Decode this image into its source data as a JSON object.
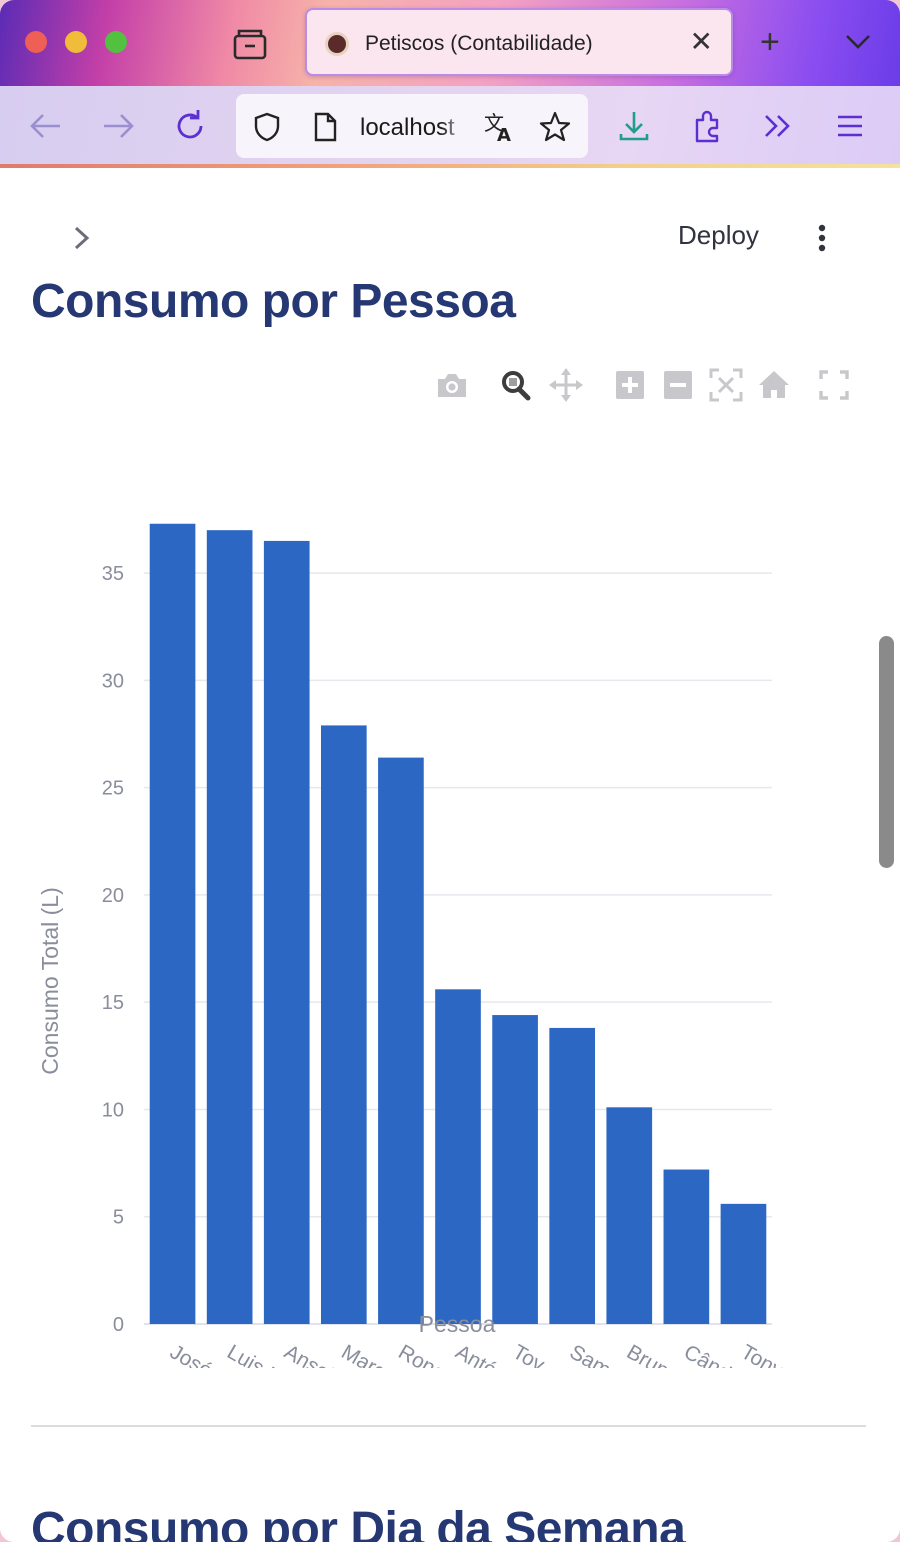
{
  "browser": {
    "tab": {
      "title": "Petiscos (Contabilidade)"
    },
    "address": {
      "url": "localhost"
    }
  },
  "app": {
    "header": {
      "deploy_label": "Deploy"
    },
    "sections": [
      {
        "title": "Consumo por Pessoa"
      },
      {
        "title": "Consumo por Dia da Semana"
      }
    ]
  },
  "colors": {
    "bar": "#2d67c4",
    "title": "#253873",
    "axis_text": "#8a8d9c"
  },
  "icons": [
    "tabs-icon",
    "back-arrow-icon",
    "forward-arrow-icon",
    "reload-icon",
    "shield-icon",
    "page-icon",
    "translate-icon",
    "star-icon",
    "download-icon",
    "extensions-icon",
    "overflow-icon",
    "menu-icon",
    "chevron-right-icon",
    "kebab-menu-icon",
    "camera-icon",
    "zoom-icon",
    "pan-icon",
    "zoom-in-icon",
    "zoom-out-icon",
    "autoscale-icon",
    "home-icon",
    "fullscreen-icon"
  ],
  "chart_data": {
    "type": "bar",
    "title": "",
    "xlabel": "Pessoa",
    "ylabel": "Consumo Total (L)",
    "categories": [
      "José Mourinho",
      "Luis Montenegro",
      "Anselmo Ralph",
      "Marcelo",
      "Ronaldo",
      "António Costa",
      "Toy",
      "Samuel Mira",
      "Bruno Nogueira",
      "Cândido Costa",
      "Tony Carreira"
    ],
    "values": [
      37.3,
      37.0,
      36.5,
      27.9,
      26.4,
      15.6,
      14.4,
      13.8,
      10.1,
      7.2,
      5.6
    ],
    "ylim": [
      0,
      38.5
    ],
    "yticks": [
      0,
      5,
      10,
      15,
      20,
      25,
      30,
      35
    ],
    "grid": true,
    "legend": "none"
  }
}
